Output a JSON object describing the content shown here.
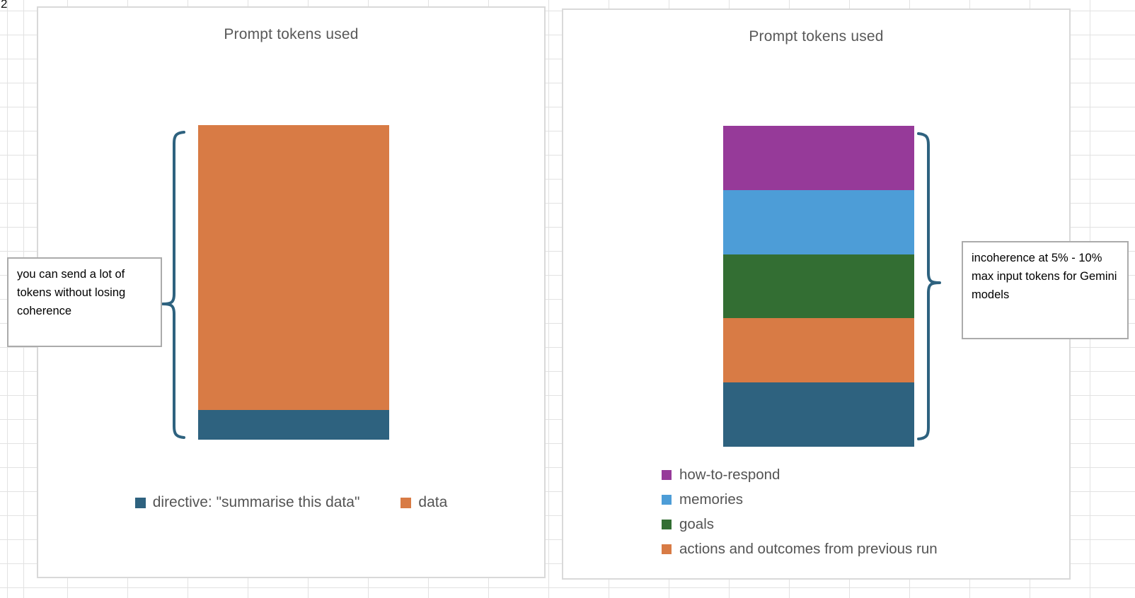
{
  "sheet": {
    "row_label": "2"
  },
  "ui": {
    "brace_color": "#2E627F",
    "chart_border_color": "#D9D9D9",
    "gridline_color": "#E2E2E2",
    "title_color": "#595959"
  },
  "charts": [
    {
      "title": "Prompt tokens used",
      "callout": "you can send a lot of tokens without losing coherence",
      "legend": [
        {
          "label": "directive: \"summarise this data\"",
          "color": "#2E627F"
        },
        {
          "label": "data",
          "color": "#D87B45"
        }
      ],
      "segments_top_to_bottom": [
        {
          "label": "data",
          "color": "#D87B45",
          "pct": 90.5
        },
        {
          "label": "directive: \"summarise this data\"",
          "color": "#2E627F",
          "pct": 9.5
        }
      ]
    },
    {
      "title": "Prompt tokens used",
      "callout": "incoherence at 5% - 10% max input tokens for Gemini models",
      "legend": [
        {
          "label": "how-to-respond",
          "color": "#963A99"
        },
        {
          "label": "memories",
          "color": "#4D9DD7"
        },
        {
          "label": "goals",
          "color": "#336E33"
        },
        {
          "label": "actions and outcomes from previous run",
          "color": "#D87B45"
        }
      ],
      "segments_top_to_bottom": [
        {
          "label": "how-to-respond",
          "color": "#963A99",
          "pct": 20
        },
        {
          "label": "memories",
          "color": "#4D9DD7",
          "pct": 20
        },
        {
          "label": "goals",
          "color": "#336E33",
          "pct": 20
        },
        {
          "label": "actions and outcomes from previous run",
          "color": "#D87B45",
          "pct": 20
        },
        {
          "label": "",
          "color": "#2E627F",
          "pct": 20
        }
      ]
    }
  ],
  "chart_data": [
    {
      "type": "bar",
      "stacked": true,
      "title": "Prompt tokens used",
      "categories": [
        ""
      ],
      "series": [
        {
          "name": "directive: \"summarise this data\"",
          "values": [
            9.5
          ],
          "color": "#2E627F"
        },
        {
          "name": "data",
          "values": [
            90.5
          ],
          "color": "#D87B45"
        }
      ],
      "ylabel": "",
      "xlabel": "",
      "axes_visible": false,
      "grid": false,
      "legend_position": "bottom",
      "annotations": [
        "you can send a lot of tokens without losing coherence"
      ],
      "units": "approximate % of bar height (no axis shown)"
    },
    {
      "type": "bar",
      "stacked": true,
      "title": "Prompt tokens used",
      "categories": [
        ""
      ],
      "series": [
        {
          "name": "",
          "values": [
            20
          ],
          "color": "#2E627F",
          "note": "bottom segment; legend entry not visible in image"
        },
        {
          "name": "actions and outcomes from previous run",
          "values": [
            20
          ],
          "color": "#D87B45"
        },
        {
          "name": "goals",
          "values": [
            20
          ],
          "color": "#336E33"
        },
        {
          "name": "memories",
          "values": [
            20
          ],
          "color": "#4D9DD7"
        },
        {
          "name": "how-to-respond",
          "values": [
            20
          ],
          "color": "#963A99"
        }
      ],
      "ylabel": "",
      "xlabel": "",
      "axes_visible": false,
      "grid": false,
      "legend_position": "bottom",
      "annotations": [
        "incoherence at 5% - 10% max input tokens for Gemini models"
      ],
      "units": "approximate % of bar height (no axis shown)"
    }
  ]
}
